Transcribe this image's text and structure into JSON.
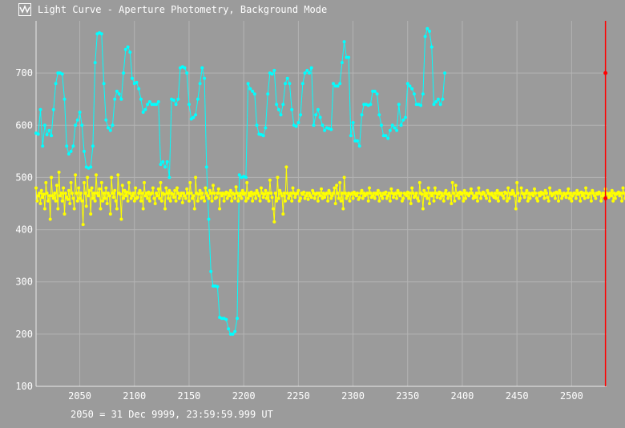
{
  "window": {
    "title": "Light Curve - Aperture Photometry, Background Mode",
    "icon": "light-curve-icon"
  },
  "footer": {
    "readout": "2050 = 31 Dec 9999, 23:59:59.999 UT"
  },
  "colors": {
    "background": "#9b9b9b",
    "grid": "#b4b4b4",
    "axis": "#e8e8e8",
    "series_primary": "#00ffff",
    "series_secondary": "#ffff00",
    "cursor": "#ff0000",
    "text": "#ffffff"
  },
  "chart_data": {
    "type": "line",
    "title": "Light Curve - Aperture Photometry, Background Mode",
    "xlabel": "",
    "ylabel": "",
    "xlim": [
      2010,
      2532
    ],
    "ylim": [
      100,
      800
    ],
    "x_ticks": [
      2050,
      2100,
      2150,
      2200,
      2250,
      2300,
      2350,
      2400,
      2450,
      2500
    ],
    "y_ticks": [
      100,
      200,
      300,
      400,
      500,
      600,
      700
    ],
    "grid": true,
    "legend": "none",
    "cursor_x": 2531,
    "series": [
      {
        "color": "#00ffff",
        "x_start": 2010,
        "x_step": 2,
        "values": [
          585,
          583,
          630,
          560,
          600,
          582,
          590,
          580,
          630,
          680,
          700,
          700,
          698,
          650,
          560,
          545,
          550,
          560,
          600,
          610,
          625,
          600,
          550,
          520,
          518,
          520,
          560,
          720,
          775,
          777,
          775,
          680,
          610,
          595,
          590,
          600,
          650,
          665,
          660,
          650,
          700,
          745,
          750,
          740,
          690,
          680,
          682,
          670,
          650,
          625,
          630,
          640,
          645,
          640,
          640,
          640,
          645,
          525,
          530,
          520,
          530,
          500,
          650,
          648,
          640,
          650,
          710,
          712,
          710,
          700,
          640,
          612,
          615,
          620,
          650,
          680,
          710,
          690,
          520,
          420,
          320,
          292,
          292,
          291,
          232,
          230,
          230,
          228,
          210,
          200,
          200,
          205,
          230,
          505,
          500,
          502,
          500,
          680,
          670,
          665,
          660,
          600,
          583,
          582,
          580,
          595,
          660,
          700,
          698,
          705,
          640,
          630,
          620,
          640,
          680,
          690,
          680,
          630,
          600,
          598,
          605,
          620,
          680,
          700,
          705,
          700,
          710,
          600,
          620,
          630,
          615,
          600,
          590,
          595,
          594,
          592,
          680,
          675,
          675,
          680,
          720,
          760,
          730,
          730,
          580,
          605,
          570,
          570,
          560,
          620,
          640,
          640,
          638,
          640,
          665,
          665,
          660,
          620,
          600,
          580,
          580,
          575,
          590,
          600,
          595,
          590,
          640,
          600,
          610,
          615,
          680,
          675,
          670,
          660,
          640,
          640,
          638,
          660,
          770,
          785,
          780,
          750,
          640,
          645,
          650,
          640,
          650,
          700
        ]
      },
      {
        "color": "#ffff00",
        "x_start": 2010,
        "x_step": 1,
        "values": [
          480,
          455,
          465,
          470,
          450,
          475,
          462,
          468,
          440,
          490,
          470,
          455,
          465,
          420,
          500,
          465,
          460,
          470,
          455,
          485,
          440,
          510,
          465,
          470,
          455,
          480,
          430,
          470,
          462,
          458,
          475,
          450,
          490,
          470,
          460,
          440,
          505,
          470,
          455,
          480,
          460,
          470,
          455,
          410,
          490,
          470,
          445,
          500,
          465,
          475,
          430,
          480,
          460,
          470,
          455,
          505,
          470,
          465,
          478,
          440,
          490,
          455,
          470,
          460,
          480,
          450,
          470,
          465,
          430,
          500,
          470,
          462,
          475,
          455,
          440,
          505,
          470,
          468,
          420,
          485,
          460,
          475,
          465,
          472,
          455,
          490,
          470,
          460,
          465,
          470,
          455,
          480,
          460,
          462,
          470,
          475,
          455,
          470,
          440,
          490,
          465,
          470,
          460,
          472,
          455,
          468,
          470,
          480,
          460,
          450,
          470,
          465,
          478,
          460,
          490,
          455,
          470,
          468,
          440,
          480,
          470,
          460,
          475,
          455,
          470,
          468,
          462,
          475,
          455,
          480,
          470,
          460,
          465,
          470,
          452,
          470,
          465,
          460,
          478,
          470,
          455,
          490,
          470,
          460,
          465,
          440,
          500,
          470,
          455,
          468,
          475,
          460,
          470,
          462,
          455,
          480,
          470,
          465,
          460,
          475,
          470,
          455,
          485,
          470,
          460,
          462,
          470,
          478,
          440,
          470,
          465,
          470,
          455,
          468,
          472,
          460,
          470,
          465,
          475,
          455,
          470,
          468,
          460,
          482,
          470,
          455,
          465,
          470,
          460,
          475,
          468,
          470,
          455,
          490,
          460,
          470,
          465,
          472,
          455,
          468,
          470,
          460,
          475,
          470,
          465,
          455,
          480,
          470,
          462,
          468,
          475,
          460,
          470,
          455,
          495,
          470,
          462,
          440,
          415,
          470,
          455,
          500,
          460,
          475,
          470,
          465,
          430,
          470,
          455,
          520,
          470,
          460,
          465,
          470,
          455,
          480,
          470,
          462,
          468,
          470,
          475,
          455,
          460,
          470,
          468,
          472,
          460,
          465,
          470,
          458,
          470,
          465,
          462,
          475,
          470,
          460,
          468,
          470,
          455,
          470,
          465,
          478,
          460,
          470,
          462,
          468,
          470,
          455,
          475,
          470,
          460,
          465,
          470,
          480,
          450,
          485,
          470,
          460,
          490,
          455,
          470,
          440,
          500,
          470,
          460,
          465,
          470,
          455,
          468,
          470,
          460,
          472,
          468,
          465,
          470,
          458,
          462,
          470,
          475,
          460,
          470,
          465,
          468,
          470,
          455,
          480,
          470,
          462,
          465,
          470,
          460,
          470,
          468,
          475,
          455,
          470,
          465,
          460,
          470,
          468,
          472,
          460,
          465,
          470,
          455,
          478,
          470,
          462,
          468,
          470,
          460,
          475,
          470,
          465,
          470,
          455,
          460,
          470,
          468,
          465,
          472,
          460,
          470,
          450,
          480,
          470,
          462,
          465,
          470,
          460,
          455,
          490,
          470,
          468,
          440,
          475,
          465,
          470,
          460,
          480,
          450,
          470,
          465,
          470,
          455,
          480,
          470,
          462,
          468,
          472,
          460,
          470,
          465,
          455,
          470,
          475,
          468,
          460,
          470,
          465,
          450,
          490,
          470,
          455,
          485,
          465,
          470,
          460,
          472,
          468,
          470,
          455,
          475,
          460,
          470,
          468,
          465,
          470,
          478,
          470,
          460,
          465,
          462,
          470,
          455,
          480,
          470,
          460,
          468,
          472,
          470,
          465,
          460,
          475,
          470,
          455,
          468,
          470,
          465,
          462,
          470,
          460,
          475,
          455,
          470,
          468,
          470,
          465,
          460,
          472,
          470,
          455,
          480,
          460,
          470,
          468,
          475,
          470,
          465,
          440,
          490,
          470,
          455,
          460,
          480,
          470,
          468,
          462,
          470,
          475,
          455,
          470,
          460,
          468,
          470,
          465,
          478,
          470,
          460,
          455,
          470,
          465,
          472,
          468,
          470,
          460,
          475,
          470,
          462,
          455,
          480,
          470,
          465,
          468,
          470,
          460,
          472,
          470,
          455,
          475,
          470,
          460,
          465,
          470,
          468,
          462,
          470,
          478,
          460,
          470,
          455,
          465,
          470,
          470,
          460,
          475,
          468,
          470,
          455,
          472,
          465,
          470,
          460,
          480,
          470,
          462,
          468,
          470,
          455,
          475,
          470,
          465,
          460,
          470,
          468,
          472,
          470,
          455,
          465,
          470,
          460,
          478,
          470,
          468,
          462,
          470,
          465,
          475,
          455,
          470,
          460,
          468,
          470,
          472,
          465,
          470,
          455,
          480,
          470,
          460,
          462,
          470,
          468,
          475,
          470,
          455,
          465,
          470,
          460
        ]
      }
    ]
  }
}
